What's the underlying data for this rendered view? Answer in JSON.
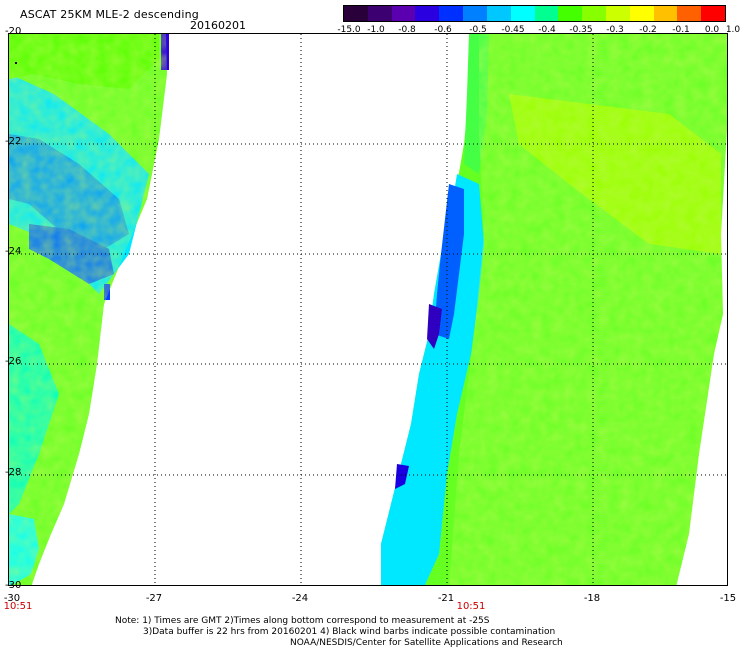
{
  "header": {
    "title": "ASCAT 25KM MLE-2 descending",
    "date": "20160201"
  },
  "colorbar": {
    "colors": [
      "#2a003a",
      "#3c0070",
      "#5a00b0",
      "#2a00e0",
      "#0030ff",
      "#0080ff",
      "#00c8ff",
      "#00ffff",
      "#00ff90",
      "#44ff00",
      "#88ff00",
      "#ccff00",
      "#ffff00",
      "#ffc000",
      "#ff6000",
      "#ff0000"
    ],
    "tick_labels": [
      "-15.0",
      "-1.0",
      "-0.8",
      "-0.6",
      "-0.5",
      "-0.45",
      "-0.4",
      "-0.35",
      "-0.3",
      "-0.2",
      "-0.1",
      "0.0",
      "1.0"
    ]
  },
  "axes": {
    "y_labels": [
      "-20",
      "-22",
      "-24",
      "-26",
      "-28",
      "-30"
    ],
    "x_labels": [
      "-30",
      "-27",
      "-24",
      "-21",
      "-18",
      "-15"
    ],
    "pass_times": [
      "10:51",
      "10:51"
    ]
  },
  "notes": [
    "Note: 1) Times are GMT 2)Times along bottom correspond to measurement at -25S",
    "3)Data buffer is 22 hrs from 20160201 4) Black wind barbs indicate possible contamination",
    "NOAA/NESDIS/Center for Satellite Applications and Research"
  ]
}
